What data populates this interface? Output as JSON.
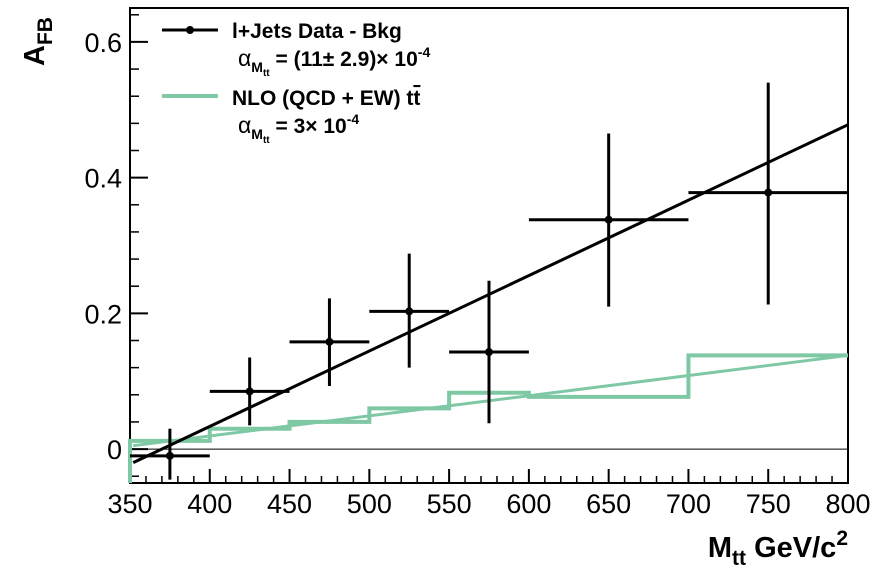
{
  "chart_data": {
    "type": "line",
    "xlabel": {
      "main": "M",
      "sub": "tt",
      "rest": " GeV/c",
      "sup": "2"
    },
    "ylabel": {
      "main": "A",
      "sub": "FB"
    },
    "xlim": [
      350,
      800
    ],
    "ylim": [
      -0.05,
      0.65
    ],
    "x_ticks": [
      350,
      400,
      450,
      500,
      550,
      600,
      650,
      700,
      750,
      800
    ],
    "x_tick_labels": [
      "350",
      "400",
      "450",
      "500",
      "550",
      "600",
      "650",
      "700",
      "750",
      "800"
    ],
    "y_ticks": [
      0,
      0.2,
      0.4,
      0.6
    ],
    "y_tick_labels": [
      "0",
      "0.2",
      "0.4",
      "0.6"
    ],
    "legend_position": "top-left",
    "colors": {
      "data": "#000000",
      "nlo": "#7ec8a4"
    },
    "series": [
      {
        "name": "l+Jets Data - Bkg",
        "kind": "points_with_errors",
        "points": [
          {
            "x": 375,
            "xlo": 350,
            "xhi": 400,
            "y": -0.01,
            "ylo": -0.045,
            "yhi": 0.03
          },
          {
            "x": 425,
            "xlo": 400,
            "xhi": 450,
            "y": 0.085,
            "ylo": 0.035,
            "yhi": 0.135
          },
          {
            "x": 475,
            "xlo": 450,
            "xhi": 500,
            "y": 0.158,
            "ylo": 0.093,
            "yhi": 0.222
          },
          {
            "x": 525,
            "xlo": 500,
            "xhi": 550,
            "y": 0.203,
            "ylo": 0.12,
            "yhi": 0.288
          },
          {
            "x": 575,
            "xlo": 550,
            "xhi": 600,
            "y": 0.143,
            "ylo": 0.038,
            "yhi": 0.248
          },
          {
            "x": 650,
            "xlo": 600,
            "xhi": 700,
            "y": 0.338,
            "ylo": 0.21,
            "yhi": 0.465
          },
          {
            "x": 750,
            "xlo": 700,
            "xhi": 800,
            "y": 0.378,
            "ylo": 0.213,
            "yhi": 0.54
          }
        ],
        "fit": {
          "x": [
            352,
            800
          ],
          "y": [
            -0.02,
            0.478
          ]
        },
        "legend_sub": {
          "alpha": "α",
          "sub": "M",
          "subsub": "tt",
          "text": " = (11± 2.9)× 10",
          "sup": "-4"
        }
      },
      {
        "name": "NLO (QCD + EW) t",
        "name_over": "t",
        "kind": "histogram",
        "bins": [
          {
            "xlo": 350,
            "xhi": 400,
            "y": 0.012
          },
          {
            "xlo": 400,
            "xhi": 450,
            "y": 0.03
          },
          {
            "xlo": 450,
            "xhi": 500,
            "y": 0.04
          },
          {
            "xlo": 500,
            "xhi": 550,
            "y": 0.06
          },
          {
            "xlo": 550,
            "xhi": 600,
            "y": 0.083
          },
          {
            "xlo": 600,
            "xhi": 700,
            "y": 0.077
          },
          {
            "xlo": 700,
            "xhi": 800,
            "y": 0.138
          }
        ],
        "histogram_start": -0.05,
        "fit": {
          "x": [
            352,
            800
          ],
          "y": [
            0.005,
            0.138
          ]
        },
        "legend_sub": {
          "alpha": "α",
          "sub": "M",
          "subsub": "tt",
          "text": " = 3× 10",
          "sup": "-4"
        }
      }
    ]
  }
}
